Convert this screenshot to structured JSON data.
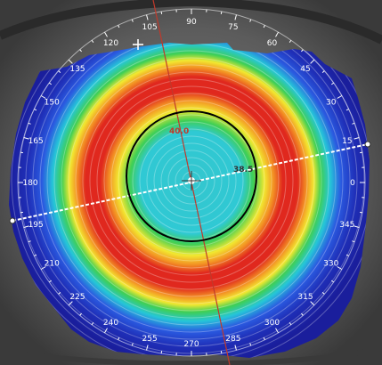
{
  "viewer": {
    "type": "corneal-topography-map",
    "angle_labels": [
      "75",
      "60",
      "45",
      "30",
      "15",
      "0",
      "345",
      "330",
      "315",
      "300",
      "285",
      "270",
      "255",
      "240",
      "225",
      "210",
      "195",
      "180",
      "165",
      "150",
      "135",
      "120",
      "105",
      "90"
    ],
    "annotations": [
      {
        "text": "40.0",
        "color": "#c0392b"
      },
      {
        "text": "38.5",
        "color": "#333333"
      }
    ],
    "colors": {
      "background": "#5a5a5a",
      "map_outer": "#1a1e9c",
      "map_band_blue": "#2a5ae0",
      "map_band_cyan": "#26c6d8",
      "map_band_green": "#3fcf55",
      "map_band_yellow": "#f2e830",
      "map_band_orange": "#f39224",
      "map_band_red": "#e0281e",
      "map_center": "#34c6ce",
      "meridian_red": "#c0392b",
      "meridian_white": "#ffffff",
      "pupil_ring": "#000000"
    }
  }
}
